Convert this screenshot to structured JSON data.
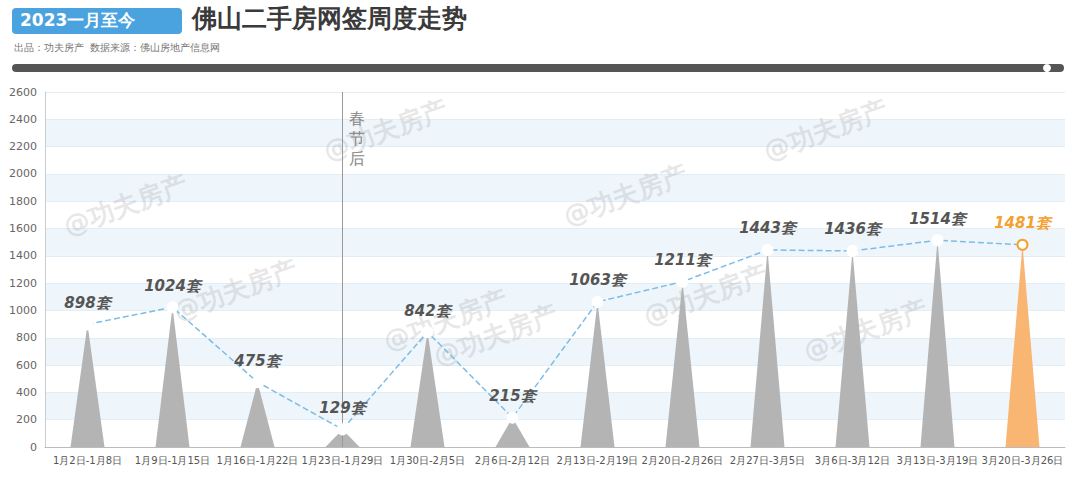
{
  "chart_data": {
    "type": "bar",
    "title_tag": "2023一月至今",
    "title": "佛山二手房网签周度走势",
    "subtitle": "出品：功夫房产  数据来源：佛山房地产信息网",
    "watermark": "@功夫房产",
    "categories": [
      "1月2日-1月8日",
      "1月9日-1月15日",
      "1月16日-1月22日",
      "1月23日-1月29日",
      "1月30日-2月5日",
      "2月6日-2月12日",
      "2月13日-2月19日",
      "2月20日-2月26日",
      "2月27日-3月5日",
      "3月6日-3月12日",
      "3月13日-3月19日",
      "3月20日-3月26日"
    ],
    "series": [
      {
        "type": "bar",
        "marker": "triangle",
        "values": [
          898,
          1024,
          475,
          129,
          842,
          215,
          1063,
          1211,
          1443,
          1436,
          1514,
          1481
        ],
        "colors": [
          "#b4b4b4",
          "#b4b4b4",
          "#b4b4b4",
          "#b4b4b4",
          "#b4b4b4",
          "#b4b4b4",
          "#b4b4b4",
          "#b4b4b4",
          "#b4b4b4",
          "#b4b4b4",
          "#b4b4b4",
          "#f9b572"
        ]
      },
      {
        "type": "line",
        "marker": "circle",
        "line_style": "dashed",
        "color": "#7cbde6",
        "colors": [
          "#7cbde6",
          "#7cbde6",
          "#7cbde6",
          "#7cbde6",
          "#7cbde6",
          "#7cbde6",
          "#7cbde6",
          "#7cbde6",
          "#7cbde6",
          "#7cbde6",
          "#7cbde6",
          "#f5a030"
        ],
        "values": [
          898,
          1024,
          475,
          129,
          842,
          215,
          1063,
          1211,
          1443,
          1436,
          1514,
          1481
        ],
        "data_labels": true,
        "value_labels": [
          "898套",
          "1024套",
          "475套",
          "129套",
          "842套",
          "215套",
          "1063套",
          "1211套",
          "1443套",
          "1436套",
          "1514套",
          "1481套"
        ]
      }
    ],
    "annotations": [
      {
        "text": "春节后",
        "x": "1月23日-1月29日"
      }
    ],
    "ylim": [
      0,
      2600
    ],
    "yticks": [
      0,
      200,
      400,
      600,
      800,
      1000,
      1200,
      1400,
      1600,
      1800,
      2000,
      2200,
      2400,
      2600
    ],
    "grid": true
  }
}
